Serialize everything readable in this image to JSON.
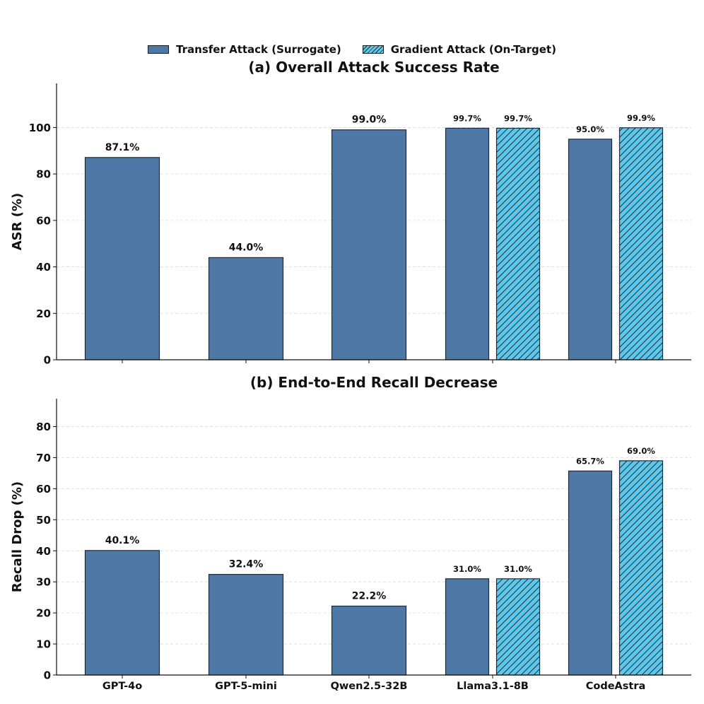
{
  "legend": {
    "transfer": "Transfer Attack (Surrogate)",
    "gradient": "Gradient Attack (On-Target)"
  },
  "colors": {
    "transfer": "#4e79a7",
    "gradient": "#5bc8ee",
    "edge": "#1f2a36",
    "grid": "#d9d9d9"
  },
  "chart_data": [
    {
      "type": "bar",
      "title": "(a) Overall Attack Success Rate",
      "ylabel": "ASR (%)",
      "xlabel": "",
      "ylim": [
        0,
        119
      ],
      "yticks": [
        0,
        20,
        40,
        60,
        80,
        100
      ],
      "grid": true,
      "categories": [
        "GPT-4o",
        "GPT-5-mini",
        "Qwen2.5-32B",
        "Llama3.1-8B",
        "CodeAstra"
      ],
      "show_xtick_labels": false,
      "series": [
        {
          "name": "Transfer Attack (Surrogate)",
          "values": [
            87.1,
            44.0,
            99.0,
            99.7,
            95.0
          ],
          "labels": [
            "87.1%",
            "44.0%",
            "99.0%",
            "99.7%",
            "95.0%"
          ]
        },
        {
          "name": "Gradient Attack (On-Target)",
          "values": [
            null,
            null,
            null,
            99.7,
            99.9
          ],
          "labels": [
            null,
            null,
            null,
            "99.7%",
            "99.9%"
          ]
        }
      ]
    },
    {
      "type": "bar",
      "title": "(b) End-to-End Recall Decrease",
      "ylabel": "Recall Drop (%)",
      "xlabel": "",
      "ylim": [
        0,
        89
      ],
      "yticks": [
        0,
        10,
        20,
        30,
        40,
        50,
        60,
        70,
        80
      ],
      "grid": true,
      "categories": [
        "GPT-4o",
        "GPT-5-mini",
        "Qwen2.5-32B",
        "Llama3.1-8B",
        "CodeAstra"
      ],
      "show_xtick_labels": true,
      "series": [
        {
          "name": "Transfer Attack (Surrogate)",
          "values": [
            40.1,
            32.4,
            22.2,
            31.0,
            65.7
          ],
          "labels": [
            "40.1%",
            "32.4%",
            "22.2%",
            "31.0%",
            "65.7%"
          ]
        },
        {
          "name": "Gradient Attack (On-Target)",
          "values": [
            null,
            null,
            null,
            31.0,
            69.0
          ],
          "labels": [
            null,
            null,
            null,
            "31.0%",
            "69.0%"
          ]
        }
      ]
    }
  ]
}
